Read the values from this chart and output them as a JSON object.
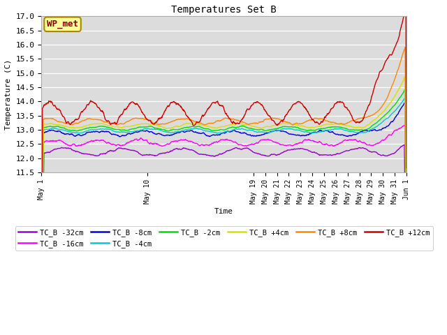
{
  "title": "Temperatures Set B",
  "xlabel": "Time",
  "ylabel": "Temperature (C)",
  "ylim": [
    11.5,
    17.0
  ],
  "yticks": [
    11.5,
    12.0,
    12.5,
    13.0,
    13.5,
    14.0,
    14.5,
    15.0,
    15.5,
    16.0,
    16.5,
    17.0
  ],
  "bg_color": "#dcdcdc",
  "series": [
    {
      "label": "TC_B -32cm",
      "color": "#9900cc",
      "lw": 1.0
    },
    {
      "label": "TC_B -16cm",
      "color": "#ff00ff",
      "lw": 1.0
    },
    {
      "label": "TC_B -8cm",
      "color": "#0000dd",
      "lw": 1.0
    },
    {
      "label": "TC_B -4cm",
      "color": "#00cccc",
      "lw": 1.0
    },
    {
      "label": "TC_B -2cm",
      "color": "#00dd00",
      "lw": 1.0
    },
    {
      "label": "TC_B +4cm",
      "color": "#dddd00",
      "lw": 1.0
    },
    {
      "label": "TC_B +8cm",
      "color": "#ff8800",
      "lw": 1.0
    },
    {
      "label": "TC_B +12cm",
      "color": "#cc0000",
      "lw": 1.0
    }
  ],
  "tick_days": [
    0,
    9,
    18,
    19,
    20,
    21,
    22,
    23,
    24,
    25,
    26,
    27,
    28,
    29,
    30,
    31
  ],
  "tick_labels": [
    "May 1",
    "May 10",
    "May 19",
    "May 20",
    "May 21",
    "May 22",
    "May 23",
    "May 24",
    "May 25",
    "May 26",
    "May 27",
    "May 28",
    "May 29",
    "May 30",
    "May 31",
    "Jun 1"
  ],
  "legend_box_color": "#ffff99",
  "legend_box_edge": "#aa8800",
  "wp_met_text": "WP_met",
  "wp_met_text_color": "#880000",
  "figsize": [
    6.4,
    4.8
  ],
  "dpi": 100
}
